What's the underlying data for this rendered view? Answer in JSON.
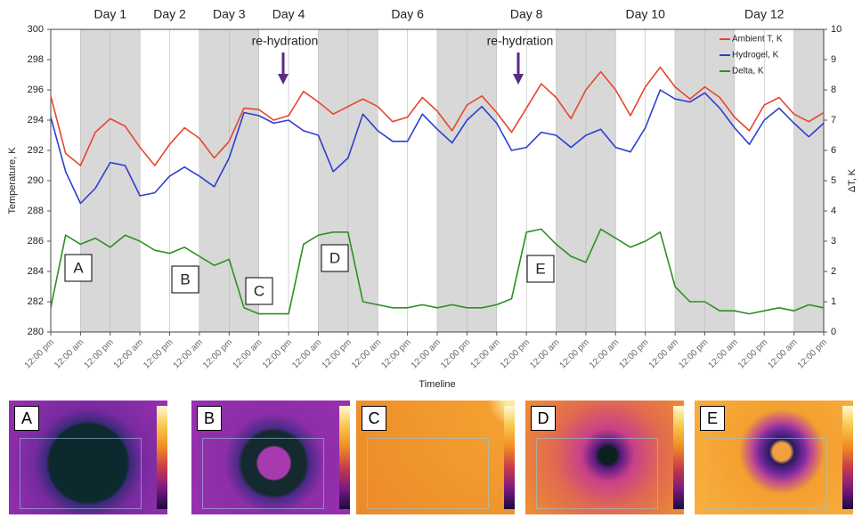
{
  "chart_data": {
    "type": "line",
    "x_label": "Timeline",
    "y_label": "Temperature, K",
    "y2_label": "ΔT, K",
    "legend": "top-right",
    "grid": true,
    "x": [
      0,
      0.5,
      1,
      1.5,
      2,
      2.5,
      3,
      3.5,
      4,
      4.5,
      5,
      5.5,
      6,
      6.5,
      7,
      7.5,
      8,
      8.5,
      9,
      9.5,
      10,
      10.5,
      11,
      11.5,
      12,
      12.5,
      13,
      13.5,
      14,
      14.5,
      15,
      15.5,
      16,
      16.5,
      17,
      17.5,
      18,
      18.5,
      19,
      19.5,
      20,
      20.5,
      21,
      21.5,
      22,
      22.5,
      23,
      23.5,
      24,
      24.5,
      25,
      25.5,
      26
    ],
    "xlim": [
      0,
      26
    ],
    "xticks": [
      {
        "value": 0,
        "label": "12:00 pm"
      },
      {
        "value": 1,
        "label": "12:00 am"
      },
      {
        "value": 2,
        "label": "12:00 pm"
      },
      {
        "value": 3,
        "label": "12:00 am"
      },
      {
        "value": 4,
        "label": "12:00 pm"
      },
      {
        "value": 5,
        "label": "12:00 am"
      },
      {
        "value": 6,
        "label": "12:00 pm"
      },
      {
        "value": 7,
        "label": "12:00 am"
      },
      {
        "value": 8,
        "label": "12:00 pm"
      },
      {
        "value": 9,
        "label": "12:00 am"
      },
      {
        "value": 10,
        "label": "12:00 pm"
      },
      {
        "value": 11,
        "label": "12:00 am"
      },
      {
        "value": 12,
        "label": "12:00 pm"
      },
      {
        "value": 13,
        "label": "12:00 am"
      },
      {
        "value": 14,
        "label": "12:00 pm"
      },
      {
        "value": 15,
        "label": "12:00 am"
      },
      {
        "value": 16,
        "label": "12:00 pm"
      },
      {
        "value": 17,
        "label": "12:00 am"
      },
      {
        "value": 18,
        "label": "12:00 pm"
      },
      {
        "value": 19,
        "label": "12:00 am"
      },
      {
        "value": 20,
        "label": "12:00 pm"
      },
      {
        "value": 21,
        "label": "12:00 am"
      },
      {
        "value": 22,
        "label": "12:00 pm"
      },
      {
        "value": 23,
        "label": "12:00 am"
      },
      {
        "value": 24,
        "label": "12:00 pm"
      },
      {
        "value": 25,
        "label": "12:00 am"
      },
      {
        "value": 26,
        "label": "12:00 pm"
      }
    ],
    "ylim": [
      280,
      300
    ],
    "yticks": [
      280,
      282,
      284,
      286,
      288,
      290,
      292,
      294,
      296,
      298,
      300
    ],
    "y2lim": [
      0,
      10
    ],
    "y2ticks": [
      0,
      1,
      2,
      3,
      4,
      5,
      6,
      7,
      8,
      9,
      10
    ],
    "shaded_bands": [
      [
        1,
        3
      ],
      [
        5,
        7
      ],
      [
        9,
        11
      ],
      [
        13,
        15
      ],
      [
        17,
        19
      ],
      [
        21,
        23
      ],
      [
        25,
        26
      ]
    ],
    "day_labels": [
      {
        "x": 2,
        "label": "Day 1"
      },
      {
        "x": 4,
        "label": "Day 2"
      },
      {
        "x": 6,
        "label": "Day 3"
      },
      {
        "x": 8,
        "label": "Day 4"
      },
      {
        "x": 12,
        "label": "Day 6"
      },
      {
        "x": 16,
        "label": "Day 8"
      },
      {
        "x": 20,
        "label": "Day 10"
      },
      {
        "x": 24,
        "label": "Day 12"
      }
    ],
    "annotations": [
      "re-hydration",
      "re-hydration"
    ],
    "point_labels": [
      "A",
      "B",
      "C",
      "D",
      "E"
    ],
    "series": [
      {
        "name": "Ambient T, K",
        "color": "#e8452c",
        "values": [
          295.6,
          291.8,
          291.0,
          293.2,
          294.1,
          293.6,
          292.2,
          291.0,
          292.4,
          293.5,
          292.8,
          291.5,
          292.6,
          294.8,
          294.7,
          294.0,
          294.3,
          295.9,
          295.2,
          294.4,
          294.9,
          295.4,
          294.9,
          293.9,
          294.2,
          295.5,
          294.6,
          293.3,
          295.0,
          295.6,
          294.5,
          293.2,
          294.8,
          296.4,
          295.5,
          294.1,
          296.0,
          297.2,
          296.0,
          294.3,
          296.2,
          297.5,
          296.2,
          295.4,
          296.2,
          295.5,
          294.2,
          293.3,
          295.0,
          295.5,
          294.4,
          293.9,
          294.5
        ]
      },
      {
        "name": "Hydrogel, K",
        "color": "#2b3fcf",
        "values": [
          294.2,
          290.6,
          288.5,
          289.5,
          291.2,
          291.0,
          289.0,
          289.2,
          290.3,
          290.9,
          290.3,
          289.6,
          291.5,
          294.5,
          294.3,
          293.8,
          294.0,
          293.3,
          293.0,
          290.6,
          291.5,
          294.4,
          293.3,
          292.6,
          292.6,
          294.4,
          293.4,
          292.5,
          294.0,
          294.9,
          293.8,
          292.0,
          292.2,
          293.2,
          293.0,
          292.2,
          293.0,
          293.4,
          292.2,
          291.9,
          293.5,
          296.0,
          295.4,
          295.2,
          295.8,
          294.8,
          293.5,
          292.4,
          294.0,
          294.8,
          293.8,
          292.9,
          293.8
        ]
      },
      {
        "name": "Delta, K",
        "color": "#2e8f22",
        "axis": "y2",
        "values": [
          0.8,
          3.2,
          2.9,
          3.1,
          2.8,
          3.2,
          3.0,
          2.7,
          2.6,
          2.8,
          2.5,
          2.2,
          2.4,
          0.8,
          0.6,
          0.6,
          0.6,
          2.9,
          3.2,
          3.3,
          3.3,
          1.0,
          0.9,
          0.8,
          0.8,
          0.9,
          0.8,
          0.9,
          0.8,
          0.8,
          0.9,
          1.1,
          3.3,
          3.4,
          2.9,
          2.5,
          2.3,
          3.4,
          3.1,
          2.8,
          3.0,
          3.3,
          1.5,
          1.0,
          1.0,
          0.7,
          0.7,
          0.6,
          0.7,
          0.8,
          0.7,
          0.9,
          0.8
        ]
      }
    ]
  },
  "panels": [
    {
      "label": "A"
    },
    {
      "label": "B"
    },
    {
      "label": "C"
    },
    {
      "label": "D"
    },
    {
      "label": "E"
    }
  ]
}
